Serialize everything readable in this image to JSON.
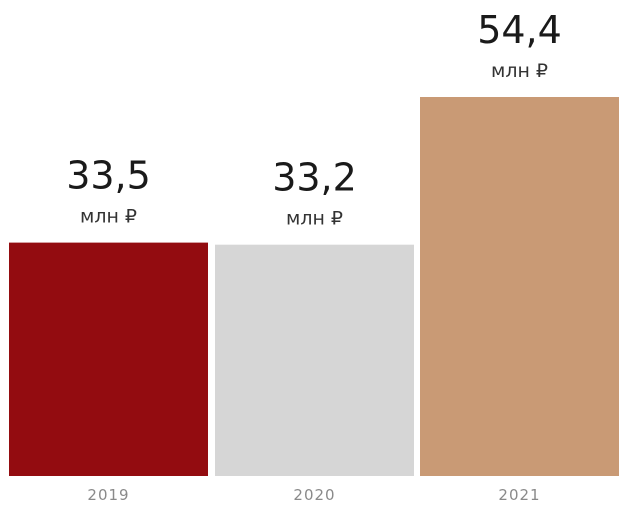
{
  "chart_data": {
    "type": "bar",
    "categories": [
      "2019",
      "2020",
      "2021"
    ],
    "values": [
      33.5,
      33.2,
      54.4
    ],
    "value_labels": [
      "33,5",
      "33,2",
      "54,4"
    ],
    "unit": "млн ₽",
    "colors": [
      "#930c10",
      "#d6d6d6",
      "#c99a75"
    ],
    "title": "",
    "xlabel": "",
    "ylabel": "",
    "ylim": [
      0,
      54.4
    ],
    "grid": false,
    "legend": "none"
  }
}
